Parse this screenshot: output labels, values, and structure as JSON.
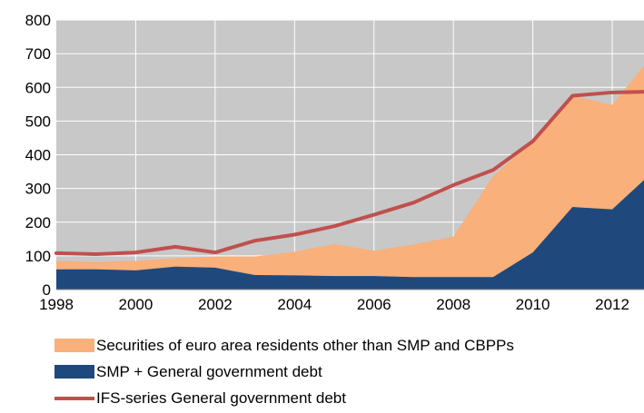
{
  "chart_data": {
    "type": "area",
    "x": [
      1998,
      1999,
      2000,
      2001,
      2002,
      2003,
      2004,
      2005,
      2006,
      2007,
      2008,
      2009,
      2010,
      2011,
      2012,
      2012.8
    ],
    "x_ticks": [
      "1998",
      "2000",
      "2002",
      "2004",
      "2006",
      "2008",
      "2010",
      "2012"
    ],
    "y_ticks": [
      "0",
      "100",
      "200",
      "300",
      "400",
      "500",
      "600",
      "700",
      "800"
    ],
    "xlim": [
      1998,
      2012.8
    ],
    "ylim": [
      0,
      800
    ],
    "grid": true,
    "plot_background": "#c8c8c8",
    "legend_position": "bottom",
    "series": [
      {
        "name": "Securities of euro area residents other than SMP and CBPPs",
        "kind": "stacked-area",
        "color": "#f9b07a",
        "values": [
          25,
          22,
          28,
          25,
          33,
          55,
          70,
          95,
          75,
          97,
          120,
          300,
          330,
          330,
          310,
          340
        ]
      },
      {
        "name": "SMP + General government debt",
        "kind": "stacked-area",
        "color": "#1f497d",
        "values": [
          60,
          60,
          57,
          68,
          65,
          43,
          42,
          40,
          40,
          37,
          37,
          37,
          110,
          245,
          238,
          325
        ]
      },
      {
        "name": "IFS-series General government debt",
        "kind": "line",
        "color": "#c0504d",
        "values": [
          108,
          105,
          110,
          127,
          110,
          145,
          163,
          188,
          222,
          258,
          310,
          355,
          440,
          575,
          585,
          587
        ]
      }
    ]
  }
}
